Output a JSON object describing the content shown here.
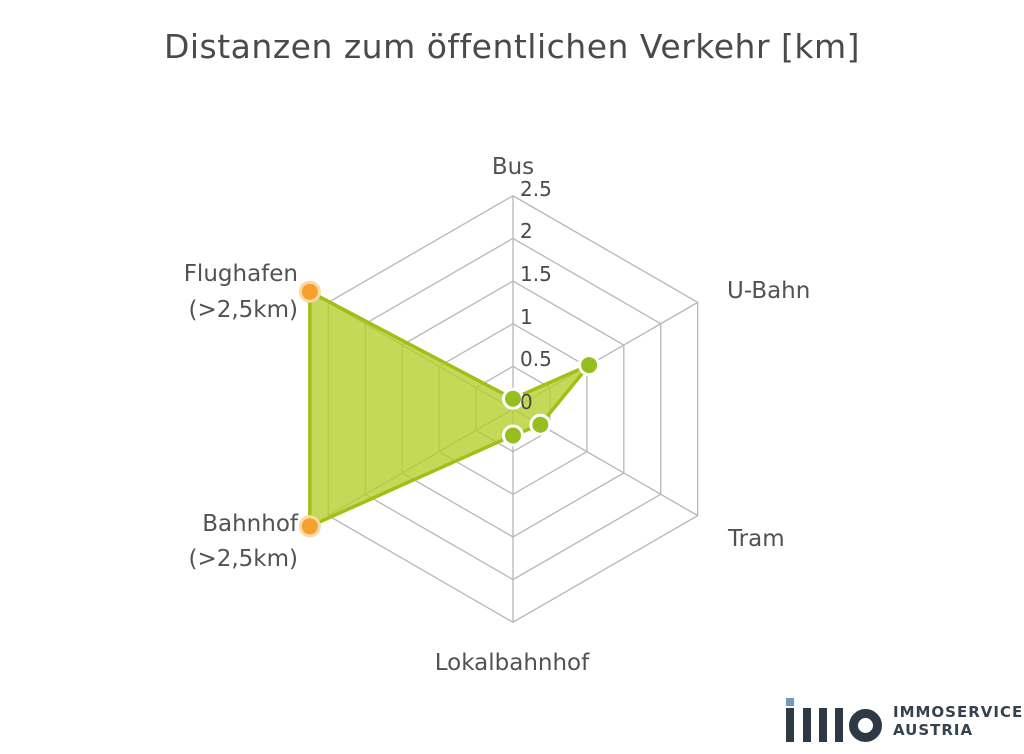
{
  "title": "Distanzen zum öffentlichen Verkehr [km]",
  "chart_data": {
    "type": "radar",
    "title": "Distanzen zum öffentlichen Verkehr [km]",
    "unit": "km",
    "rmax": 2.5,
    "ring_step": 0.5,
    "tick_labels": [
      "0",
      "0.5",
      "1",
      "1.5",
      "2",
      "2.5"
    ],
    "axes": [
      {
        "label": "Bus",
        "suffix": "",
        "value": 0.12,
        "marker": "green"
      },
      {
        "label": "U-Bahn",
        "suffix": "",
        "value": 1.03,
        "marker": "green"
      },
      {
        "label": "Tram",
        "suffix": "",
        "value": 0.37,
        "marker": "green"
      },
      {
        "label": "Lokalbahnhof",
        "suffix": "",
        "value": 0.31,
        "marker": "green"
      },
      {
        "label": "Bahnhof",
        "suffix": "(>2,5km)",
        "value": 2.75,
        "marker": "orange"
      },
      {
        "label": "Flughafen",
        "suffix": "(>2,5km)",
        "value": 2.75,
        "marker": "orange"
      }
    ],
    "legend": null,
    "grid": true,
    "colors": {
      "fill_green": "rgba(179,206,41,0.78)",
      "stroke_green": "#a3bf17",
      "marker_green": "#96be1e",
      "marker_orange": "#f6a12d",
      "orange_halo": "#fbd9a4",
      "grid_gray": "#b7b7b7",
      "text_gray": "#4a4a4a",
      "logo_navy": "#2d3a45",
      "logo_blue": "#6e9cbf"
    }
  },
  "logo": {
    "line1": "IMMOSERVICE",
    "line2": "AUSTRIA"
  }
}
